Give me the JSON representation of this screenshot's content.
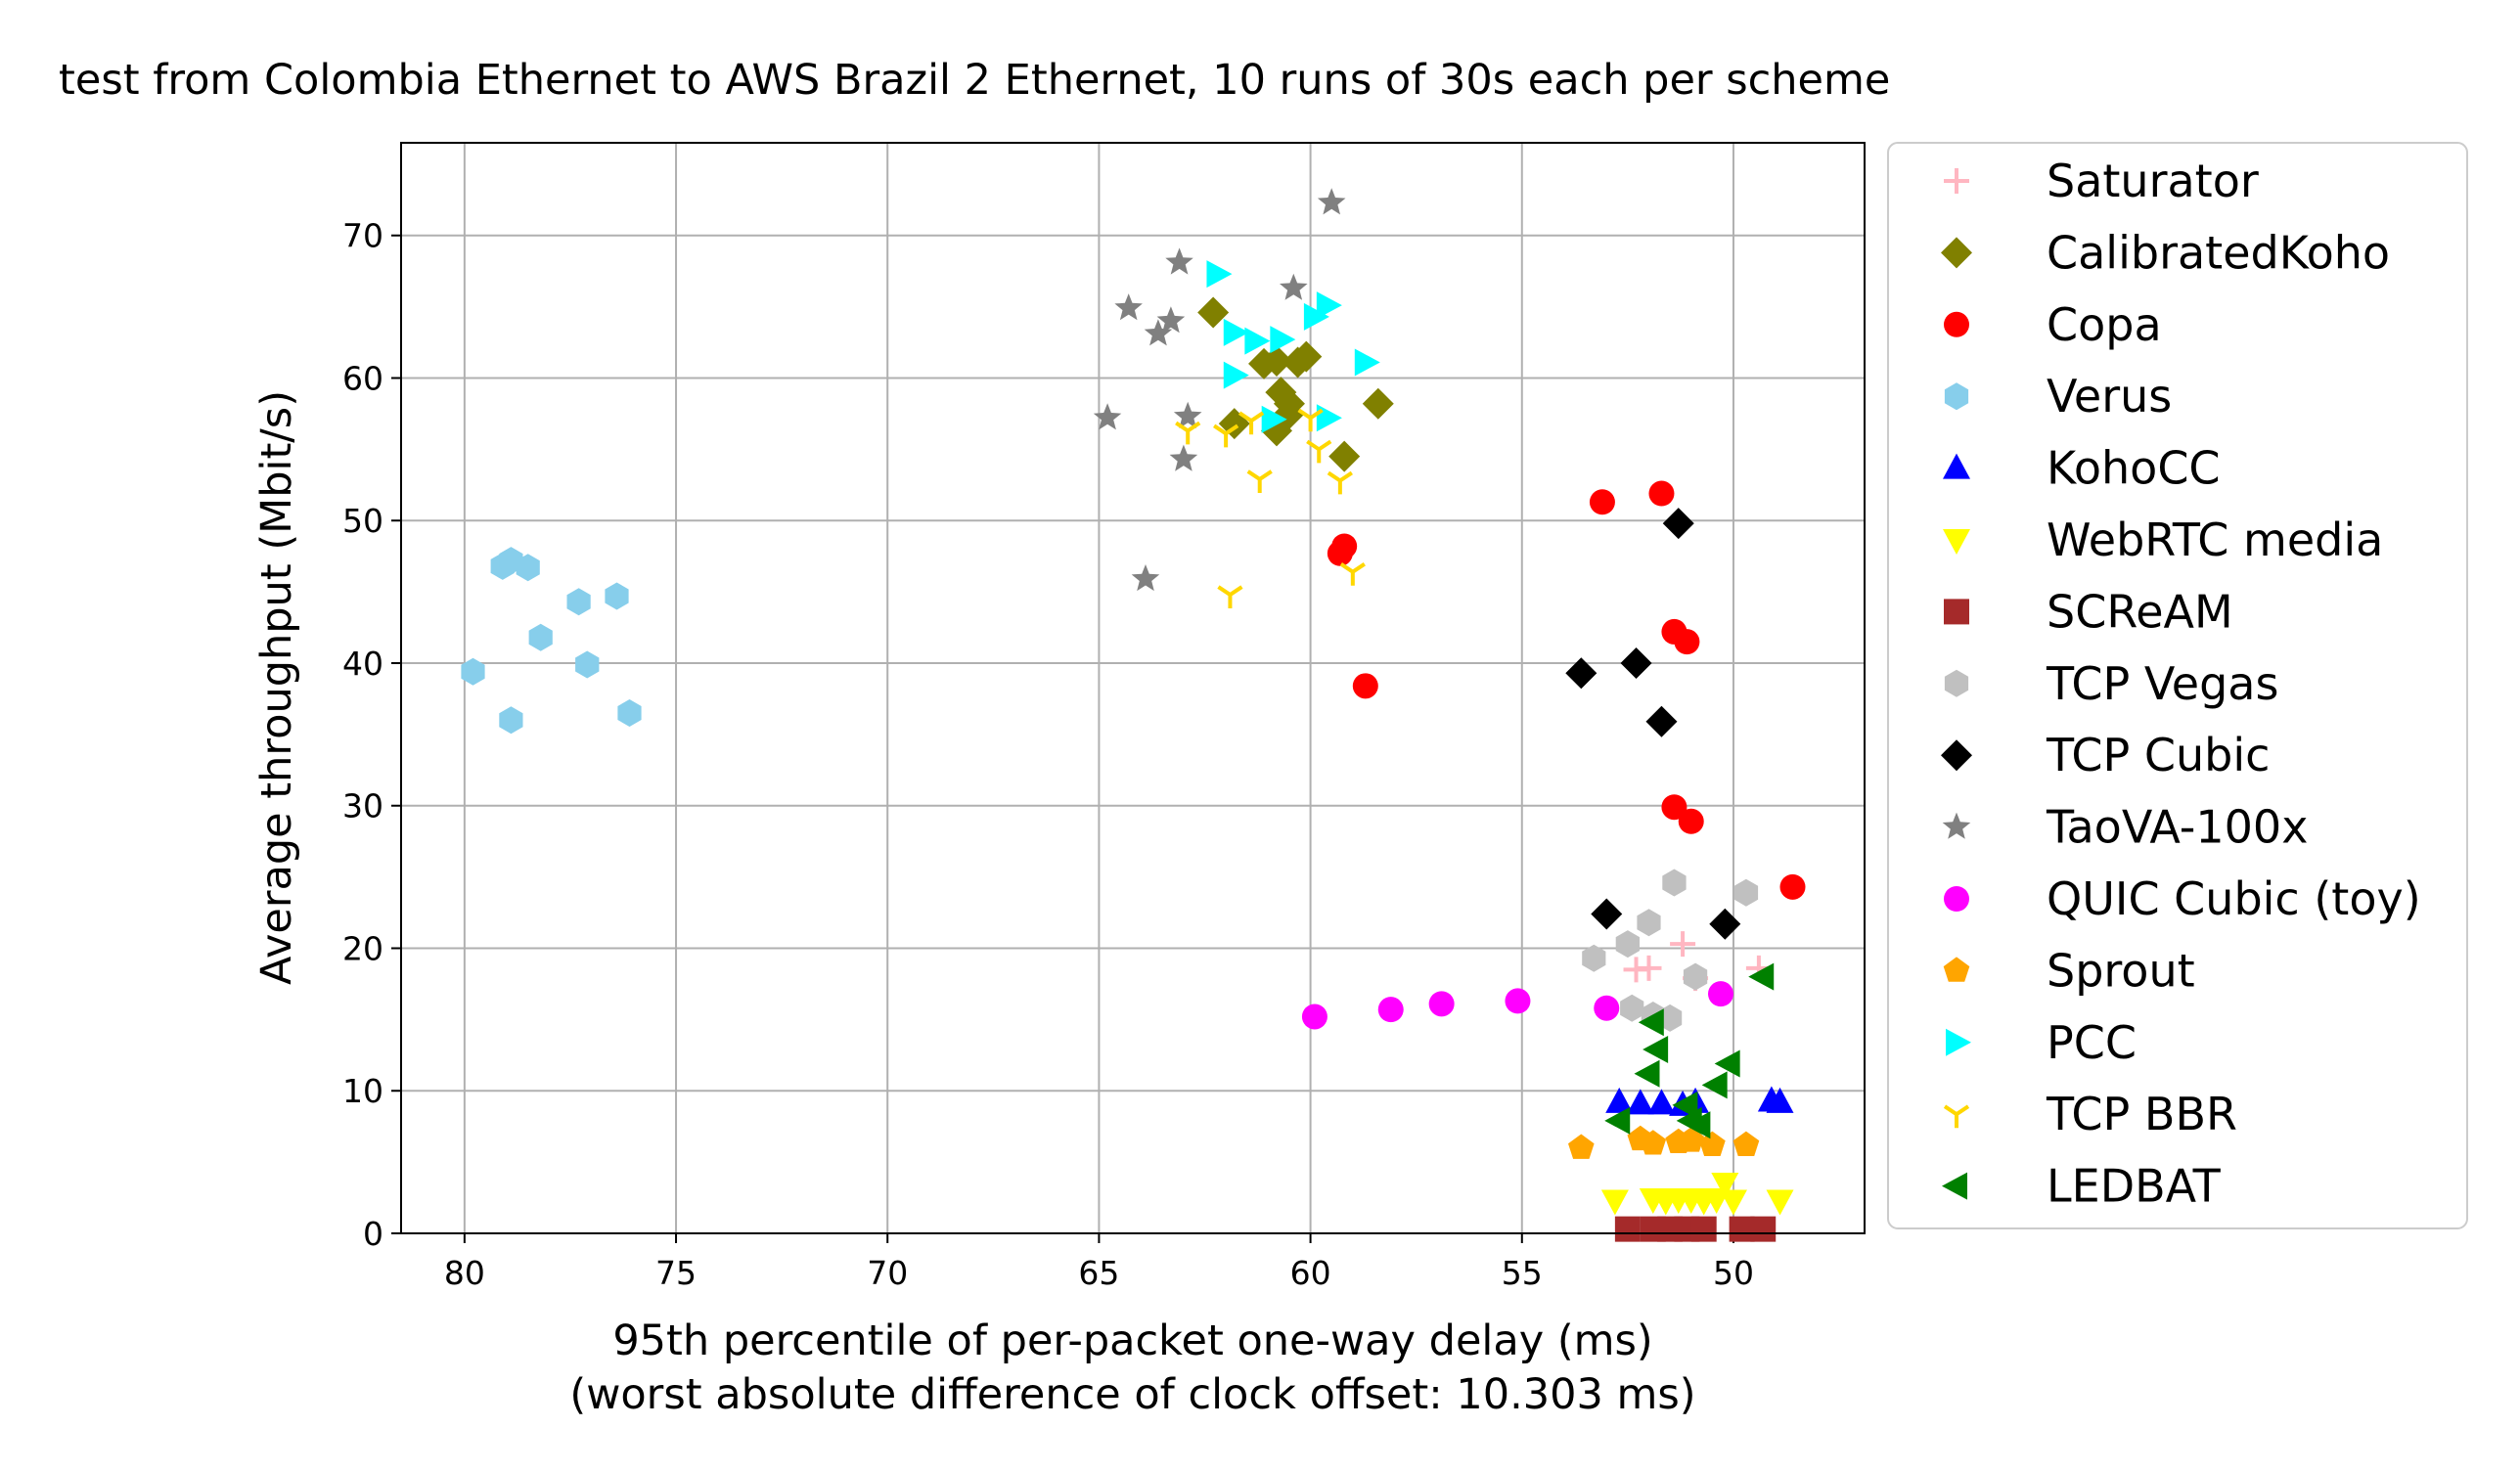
{
  "chart_data": {
    "type": "scatter",
    "title": "test from Colombia Ethernet to AWS Brazil 2 Ethernet, 10 runs of 30s each per scheme",
    "xlabel": "95th percentile of per-packet one-way delay (ms)",
    "xlabel2": "(worst absolute difference of clock offset: 10.303 ms)",
    "ylabel": "Average throughput (Mbit/s)",
    "xlim": [
      81.5,
      46.9
    ],
    "ylim": [
      0,
      76.5
    ],
    "x_inverted": true,
    "grid": true,
    "legend_position": "outside-right",
    "xticks": [
      80,
      75,
      70,
      65,
      60,
      55,
      50
    ],
    "yticks": [
      0,
      10,
      20,
      30,
      40,
      50,
      60,
      70
    ],
    "series": [
      {
        "name": "Saturator",
        "marker": "plus",
        "color": "#ffb6c1",
        "points": [
          [
            52.3,
            18.5
          ],
          [
            52.0,
            18.6
          ],
          [
            51.2,
            20.3
          ],
          [
            50.9,
            17.9
          ],
          [
            49.4,
            18.6
          ]
        ]
      },
      {
        "name": "CalibratedKoho",
        "marker": "diamond",
        "color": "#808000",
        "points": [
          [
            62.3,
            64.6
          ],
          [
            61.8,
            56.8
          ],
          [
            61.1,
            61.0
          ],
          [
            60.8,
            61.2
          ],
          [
            60.7,
            59.0
          ],
          [
            60.5,
            58.2
          ],
          [
            60.3,
            61.1
          ],
          [
            60.1,
            61.5
          ],
          [
            60.8,
            56.3
          ],
          [
            59.2,
            54.5
          ],
          [
            58.4,
            58.2
          ],
          [
            60.5,
            57.5
          ]
        ]
      },
      {
        "name": "Copa",
        "marker": "circle",
        "color": "#ff0000",
        "points": [
          [
            53.1,
            51.3
          ],
          [
            51.7,
            51.9
          ],
          [
            59.3,
            47.7
          ],
          [
            59.2,
            48.2
          ],
          [
            58.7,
            38.4
          ],
          [
            51.4,
            42.2
          ],
          [
            51.1,
            41.5
          ],
          [
            51.4,
            29.9
          ],
          [
            51.0,
            28.9
          ],
          [
            48.6,
            24.3
          ]
        ]
      },
      {
        "name": "Verus",
        "marker": "hexagon",
        "color": "#87ceeb",
        "points": [
          [
            79.8,
            39.4
          ],
          [
            79.1,
            46.8
          ],
          [
            78.9,
            47.2
          ],
          [
            78.5,
            46.7
          ],
          [
            78.9,
            36.0
          ],
          [
            78.2,
            41.8
          ],
          [
            77.3,
            44.3
          ],
          [
            77.1,
            39.9
          ],
          [
            76.4,
            44.7
          ],
          [
            76.1,
            36.5
          ]
        ]
      },
      {
        "name": "KohoCC",
        "marker": "triangle-up",
        "color": "#0000ff",
        "points": [
          [
            52.7,
            9.2
          ],
          [
            52.2,
            9.1
          ],
          [
            51.7,
            9.1
          ],
          [
            51.2,
            9.0
          ],
          [
            50.9,
            9.2
          ],
          [
            49.1,
            9.3
          ],
          [
            48.9,
            9.2
          ]
        ]
      },
      {
        "name": "WebRTC media",
        "marker": "triangle-down",
        "color": "#ffff00",
        "points": [
          [
            52.8,
            2.3
          ],
          [
            51.9,
            2.4
          ],
          [
            51.6,
            2.3
          ],
          [
            51.3,
            2.4
          ],
          [
            51.0,
            2.4
          ],
          [
            50.7,
            2.3
          ],
          [
            50.4,
            2.4
          ],
          [
            50.2,
            3.5
          ],
          [
            50.0,
            2.3
          ],
          [
            48.9,
            2.3
          ]
        ]
      },
      {
        "name": "SCReAM",
        "marker": "square",
        "color": "#a52a2a",
        "points": [
          [
            52.5,
            0.3
          ],
          [
            51.9,
            0.3
          ],
          [
            51.5,
            0.3
          ],
          [
            51.1,
            0.3
          ],
          [
            50.7,
            0.3
          ],
          [
            49.8,
            0.3
          ],
          [
            49.3,
            0.3
          ]
        ]
      },
      {
        "name": "TCP Vegas",
        "marker": "hexagon",
        "color": "#c0c0c0",
        "points": [
          [
            53.3,
            19.3
          ],
          [
            52.5,
            20.3
          ],
          [
            52.0,
            21.8
          ],
          [
            51.4,
            24.6
          ],
          [
            50.9,
            18.0
          ],
          [
            49.7,
            23.9
          ],
          [
            52.4,
            15.8
          ],
          [
            51.9,
            15.3
          ],
          [
            51.5,
            15.1
          ]
        ]
      },
      {
        "name": "TCP Cubic",
        "marker": "diamond",
        "color": "#000000",
        "points": [
          [
            51.3,
            49.8
          ],
          [
            53.6,
            39.3
          ],
          [
            52.3,
            40.0
          ],
          [
            51.7,
            35.9
          ],
          [
            53.0,
            22.4
          ],
          [
            50.2,
            21.7
          ]
        ]
      },
      {
        "name": "TaoVA-100x",
        "marker": "star",
        "color": "#808080",
        "points": [
          [
            59.5,
            72.3
          ],
          [
            63.1,
            68.1
          ],
          [
            60.4,
            66.3
          ],
          [
            64.3,
            64.9
          ],
          [
            63.6,
            63.1
          ],
          [
            63.3,
            64.0
          ],
          [
            64.8,
            57.2
          ],
          [
            62.9,
            57.3
          ],
          [
            63.0,
            54.3
          ],
          [
            63.9,
            45.9
          ]
        ]
      },
      {
        "name": "QUIC Cubic (toy)",
        "marker": "circle",
        "color": "#ff00ff",
        "points": [
          [
            59.9,
            15.2
          ],
          [
            58.1,
            15.7
          ],
          [
            56.9,
            16.1
          ],
          [
            55.1,
            16.3
          ],
          [
            53.0,
            15.8
          ],
          [
            50.3,
            16.8
          ]
        ]
      },
      {
        "name": "Sprout",
        "marker": "pentagon",
        "color": "#ffa500",
        "points": [
          [
            53.6,
            6.0
          ],
          [
            52.2,
            6.6
          ],
          [
            51.9,
            6.3
          ],
          [
            51.3,
            6.4
          ],
          [
            51.0,
            6.5
          ],
          [
            50.5,
            6.2
          ],
          [
            49.7,
            6.2
          ]
        ]
      },
      {
        "name": "PCC",
        "marker": "triangle-right",
        "color": "#00ffff",
        "points": [
          [
            62.2,
            67.3
          ],
          [
            61.8,
            63.2
          ],
          [
            61.3,
            62.6
          ],
          [
            60.7,
            62.7
          ],
          [
            61.8,
            60.2
          ],
          [
            60.9,
            57.1
          ],
          [
            59.9,
            64.3
          ],
          [
            59.6,
            65.1
          ],
          [
            58.7,
            61.1
          ],
          [
            59.6,
            57.2
          ]
        ]
      },
      {
        "name": "TCP BBR",
        "marker": "tri-down",
        "color": "#ffd700",
        "points": [
          [
            62.9,
            56.3
          ],
          [
            62.0,
            56.1
          ],
          [
            61.4,
            57.0
          ],
          [
            61.2,
            52.9
          ],
          [
            60.0,
            57.2
          ],
          [
            59.8,
            55.0
          ],
          [
            59.3,
            52.8
          ],
          [
            59.0,
            46.4
          ],
          [
            61.9,
            44.8
          ]
        ]
      },
      {
        "name": "LEDBAT",
        "marker": "triangle-left",
        "color": "#008000",
        "points": [
          [
            52.7,
            7.9
          ],
          [
            52.0,
            11.2
          ],
          [
            51.8,
            12.9
          ],
          [
            51.9,
            14.8
          ],
          [
            51.1,
            9.0
          ],
          [
            51.0,
            7.9
          ],
          [
            50.8,
            7.6
          ],
          [
            50.4,
            10.4
          ],
          [
            50.1,
            11.9
          ],
          [
            49.3,
            18.0
          ]
        ]
      }
    ]
  }
}
